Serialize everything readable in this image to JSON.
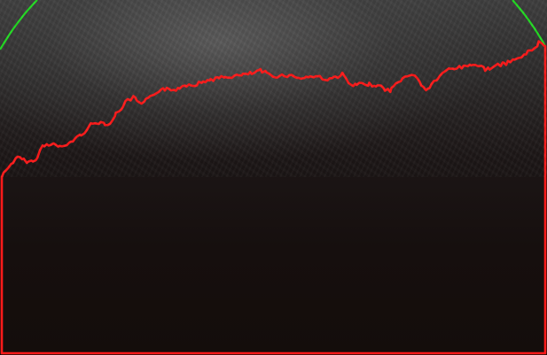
{
  "scene": {
    "description_free": true,
    "colors": {
      "boundary_contour": "#ff1a1a",
      "reference_arc": "#22dd22",
      "background_top": "#3e3e3e",
      "background_bottom": "#140d0b"
    }
  }
}
